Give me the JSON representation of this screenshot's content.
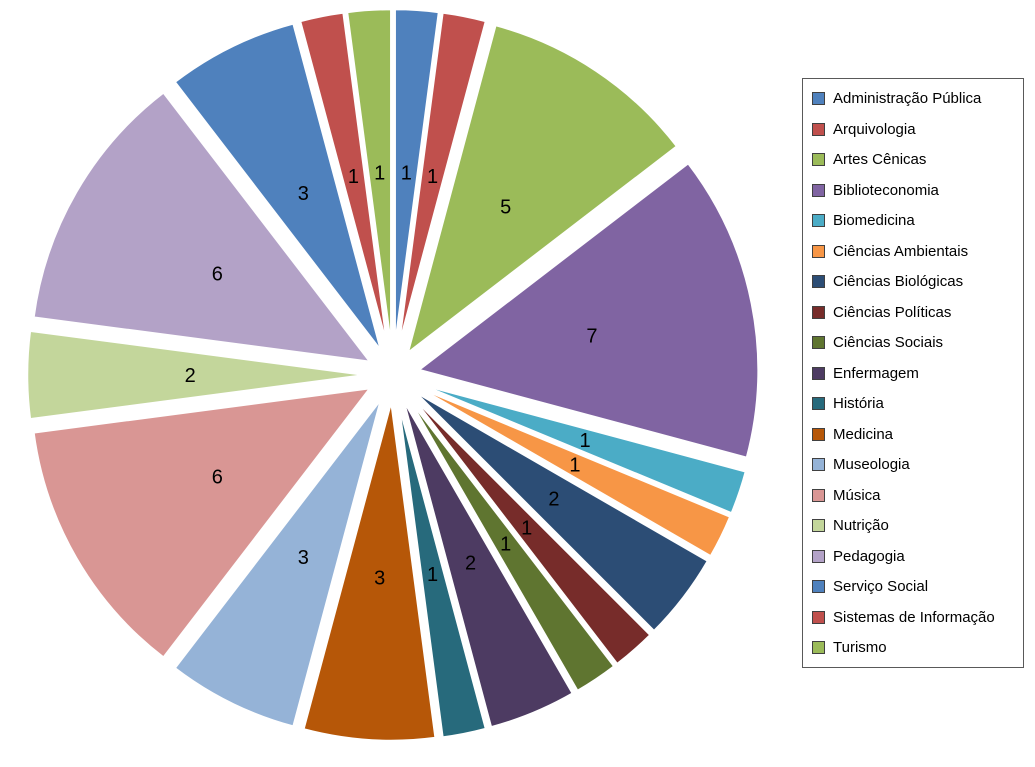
{
  "chart_data": {
    "type": "pie",
    "title": "",
    "legend_position": "right",
    "exploded": true,
    "categories": [
      "Administração Pública",
      "Arquivologia",
      "Artes Cênicas",
      "Biblioteconomia",
      "Biomedicina",
      "Ciências Ambientais",
      "Ciências Biológicas",
      "Ciências Políticas",
      "Ciências Sociais",
      "Enfermagem",
      "História",
      "Medicina",
      "Museologia",
      "Música",
      "Nutrição",
      "Pedagogia",
      "Serviço Social",
      "Sistemas de Informação",
      "Turismo"
    ],
    "values": [
      1,
      1,
      5,
      7,
      1,
      1,
      2,
      1,
      1,
      2,
      1,
      3,
      3,
      6,
      2,
      6,
      3,
      1,
      1
    ],
    "total": 48,
    "colors": [
      "#4F81BD",
      "#C0504D",
      "#9BBB59",
      "#8064A2",
      "#4BACC6",
      "#F79646",
      "#2C4D75",
      "#772C2A",
      "#5F7530",
      "#4D3B62",
      "#276A7C",
      "#B65708",
      "#95B3D7",
      "#D99694",
      "#C3D69B",
      "#B3A2C7",
      "#4F81BD",
      "#C0504D",
      "#9BBB59"
    ],
    "slice_border_color": "#FFFFFF",
    "label_color": "#000000",
    "legend_border_color": "#595959",
    "background_color": "#FFFFFF"
  }
}
